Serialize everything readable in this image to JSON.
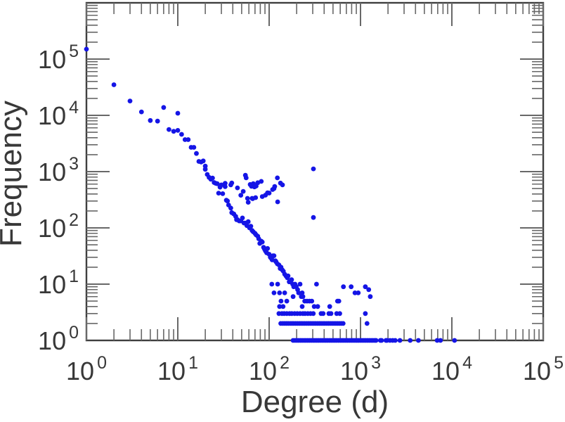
{
  "chart_data": {
    "type": "scatter",
    "title": "",
    "xlabel": "Degree (d)",
    "ylabel": "Frequency",
    "x_scale": "log",
    "y_scale": "log",
    "xlim": [
      1,
      100000
    ],
    "ylim": [
      1,
      1000000
    ],
    "x_tick_exponents": [
      0,
      1,
      2,
      3,
      4,
      5
    ],
    "y_tick_exponents": [
      0,
      1,
      2,
      3,
      4,
      5
    ],
    "tick_label_base": "10",
    "grid": false,
    "legend": null,
    "marker_color": "#1515e6",
    "frame_color": "#3f3f3f",
    "tick_color": "#686868",
    "text_color": "#383838",
    "background": "#ffffff",
    "points": [
      [
        1,
        150000
      ],
      [
        2,
        35000
      ],
      [
        3,
        18000
      ],
      [
        4,
        11500
      ],
      [
        5,
        8100
      ],
      [
        6,
        7900
      ],
      [
        7,
        13800
      ],
      [
        8,
        5600
      ],
      [
        9,
        5200
      ],
      [
        10,
        10900
      ],
      [
        10,
        5400
      ],
      [
        11,
        4600
      ],
      [
        12,
        3700
      ],
      [
        13,
        3700
      ],
      [
        14,
        2700
      ],
      [
        15,
        2700
      ],
      [
        16,
        2100
      ],
      [
        17,
        1520
      ],
      [
        18,
        1480
      ],
      [
        19,
        1550
      ],
      [
        20,
        1250
      ],
      [
        20,
        1100
      ],
      [
        21,
        890
      ],
      [
        22,
        790
      ],
      [
        23,
        730
      ],
      [
        24,
        770
      ],
      [
        25,
        640
      ],
      [
        26,
        620
      ],
      [
        27,
        610
      ],
      [
        28,
        415
      ],
      [
        29,
        530
      ],
      [
        30,
        580
      ],
      [
        31,
        405
      ],
      [
        33,
        620
      ],
      [
        33,
        540
      ],
      [
        34,
        310
      ],
      [
        35,
        300
      ],
      [
        36,
        255
      ],
      [
        38,
        580
      ],
      [
        38,
        225
      ],
      [
        39,
        630
      ],
      [
        39,
        187
      ],
      [
        41,
        177
      ],
      [
        43,
        160
      ],
      [
        44,
        140
      ],
      [
        45,
        515
      ],
      [
        45,
        140
      ],
      [
        47,
        133
      ],
      [
        49,
        380
      ],
      [
        49,
        133
      ],
      [
        51,
        150
      ],
      [
        52,
        445
      ],
      [
        53,
        122
      ],
      [
        55,
        860
      ],
      [
        55,
        122
      ],
      [
        56,
        775
      ],
      [
        57,
        110
      ],
      [
        58,
        335
      ],
      [
        59,
        285
      ],
      [
        59,
        129
      ],
      [
        61,
        100
      ],
      [
        62,
        590
      ],
      [
        63,
        107
      ],
      [
        64,
        550
      ],
      [
        65,
        335
      ],
      [
        65,
        90
      ],
      [
        66,
        330
      ],
      [
        67,
        610
      ],
      [
        67,
        85
      ],
      [
        69,
        535
      ],
      [
        70,
        80
      ],
      [
        71,
        345
      ],
      [
        72,
        555
      ],
      [
        72,
        75
      ],
      [
        75,
        635
      ],
      [
        75,
        71
      ],
      [
        77,
        64
      ],
      [
        79,
        53
      ],
      [
        82,
        670
      ],
      [
        82,
        58
      ],
      [
        84,
        360
      ],
      [
        84,
        56
      ],
      [
        87,
        45
      ],
      [
        89,
        42
      ],
      [
        91,
        381
      ],
      [
        91,
        39
      ],
      [
        94,
        36
      ],
      [
        96,
        420
      ],
      [
        96,
        43
      ],
      [
        100,
        416
      ],
      [
        100,
        34
      ],
      [
        103,
        30
      ],
      [
        105,
        29
      ],
      [
        107,
        10
      ],
      [
        108,
        27
      ],
      [
        109,
        480
      ],
      [
        110,
        32
      ],
      [
        113,
        500
      ],
      [
        113,
        32
      ],
      [
        113,
        7
      ],
      [
        115,
        545
      ],
      [
        117,
        26
      ],
      [
        119,
        25
      ],
      [
        123,
        775
      ],
      [
        123,
        23
      ],
      [
        124,
        290
      ],
      [
        124,
        10
      ],
      [
        128,
        22
      ],
      [
        128,
        3
      ],
      [
        130,
        7
      ],
      [
        130,
        4
      ],
      [
        132,
        19
      ],
      [
        133,
        625
      ],
      [
        135,
        20
      ],
      [
        135,
        5
      ],
      [
        138,
        3
      ],
      [
        139,
        18
      ],
      [
        140,
        580
      ],
      [
        142,
        4
      ],
      [
        143,
        17
      ],
      [
        146,
        3
      ],
      [
        148,
        15
      ],
      [
        148,
        7
      ],
      [
        153,
        14
      ],
      [
        156,
        5
      ],
      [
        156,
        3
      ],
      [
        158,
        13
      ],
      [
        161,
        14
      ],
      [
        166,
        11
      ],
      [
        167,
        3
      ],
      [
        171,
        11
      ],
      [
        176,
        12
      ],
      [
        177,
        3
      ],
      [
        181,
        10
      ],
      [
        183,
        6
      ],
      [
        186,
        9
      ],
      [
        190,
        3
      ],
      [
        192,
        10
      ],
      [
        198,
        9
      ],
      [
        203,
        3
      ],
      [
        205,
        8
      ],
      [
        210,
        7
      ],
      [
        218,
        10
      ],
      [
        218,
        3
      ],
      [
        225,
        6
      ],
      [
        230,
        7
      ],
      [
        230,
        4
      ],
      [
        234,
        6
      ],
      [
        234,
        3
      ],
      [
        245,
        5
      ],
      [
        247,
        3
      ],
      [
        260,
        5
      ],
      [
        265,
        3
      ],
      [
        276,
        5
      ],
      [
        284,
        3
      ],
      [
        293,
        5
      ],
      [
        304,
        3
      ],
      [
        305,
        1120
      ],
      [
        305,
        153
      ],
      [
        311,
        4
      ],
      [
        330,
        10
      ],
      [
        340,
        4
      ],
      [
        370,
        3
      ],
      [
        390,
        3
      ],
      [
        451,
        3
      ],
      [
        460,
        4
      ],
      [
        475,
        3
      ],
      [
        549,
        3
      ],
      [
        560,
        5
      ],
      [
        580,
        5
      ],
      [
        593,
        3
      ],
      [
        650,
        9
      ],
      [
        790,
        9
      ],
      [
        870,
        7
      ],
      [
        945,
        7
      ],
      [
        1130,
        9
      ],
      [
        1130,
        3
      ],
      [
        1230,
        8
      ],
      [
        1280,
        6
      ],
      [
        134,
        2
      ],
      [
        141,
        2
      ],
      [
        148,
        2
      ],
      [
        155,
        2
      ],
      [
        162,
        2
      ],
      [
        170,
        2
      ],
      [
        178,
        2
      ],
      [
        186,
        2
      ],
      [
        195,
        2
      ],
      [
        204,
        2
      ],
      [
        214,
        2
      ],
      [
        224,
        2
      ],
      [
        234,
        2
      ],
      [
        245,
        2
      ],
      [
        257,
        2
      ],
      [
        269,
        2
      ],
      [
        282,
        2
      ],
      [
        295,
        2
      ],
      [
        309,
        2
      ],
      [
        323,
        2
      ],
      [
        339,
        2
      ],
      [
        355,
        2
      ],
      [
        371,
        2
      ],
      [
        389,
        2
      ],
      [
        407,
        2
      ],
      [
        427,
        2
      ],
      [
        447,
        2
      ],
      [
        468,
        2
      ],
      [
        490,
        2
      ],
      [
        513,
        2
      ],
      [
        537,
        2
      ],
      [
        562,
        2
      ],
      [
        589,
        2
      ],
      [
        617,
        2
      ],
      [
        646,
        2
      ],
      [
        1180,
        2
      ],
      [
        183,
        1
      ],
      [
        192,
        1
      ],
      [
        201,
        1
      ],
      [
        210,
        1
      ],
      [
        220,
        1
      ],
      [
        230,
        1
      ],
      [
        241,
        1
      ],
      [
        252,
        1
      ],
      [
        264,
        1
      ],
      [
        276,
        1
      ],
      [
        289,
        1
      ],
      [
        303,
        1
      ],
      [
        317,
        1
      ],
      [
        332,
        1
      ],
      [
        347,
        1
      ],
      [
        363,
        1
      ],
      [
        380,
        1
      ],
      [
        398,
        1
      ],
      [
        417,
        1
      ],
      [
        436,
        1
      ],
      [
        457,
        1
      ],
      [
        478,
        1
      ],
      [
        500,
        1
      ],
      [
        524,
        1
      ],
      [
        548,
        1
      ],
      [
        574,
        1
      ],
      [
        601,
        1
      ],
      [
        629,
        1
      ],
      [
        658,
        1
      ],
      [
        689,
        1
      ],
      [
        721,
        1
      ],
      [
        755,
        1
      ],
      [
        790,
        1
      ],
      [
        827,
        1
      ],
      [
        866,
        1
      ],
      [
        906,
        1
      ],
      [
        949,
        1
      ],
      [
        993,
        1
      ],
      [
        1040,
        1
      ],
      [
        1088,
        1
      ],
      [
        1139,
        1
      ],
      [
        1192,
        1
      ],
      [
        1248,
        1
      ],
      [
        1306,
        1
      ],
      [
        1367,
        1
      ],
      [
        1431,
        1
      ],
      [
        1480,
        1
      ],
      [
        1650,
        1
      ],
      [
        1700,
        1
      ],
      [
        1900,
        1
      ],
      [
        1950,
        1
      ],
      [
        2100,
        1
      ],
      [
        2250,
        1
      ],
      [
        2400,
        1
      ],
      [
        2700,
        1
      ],
      [
        3500,
        1
      ],
      [
        4300,
        1
      ],
      [
        6900,
        1
      ],
      [
        7500,
        1
      ],
      [
        10700,
        1
      ]
    ]
  }
}
